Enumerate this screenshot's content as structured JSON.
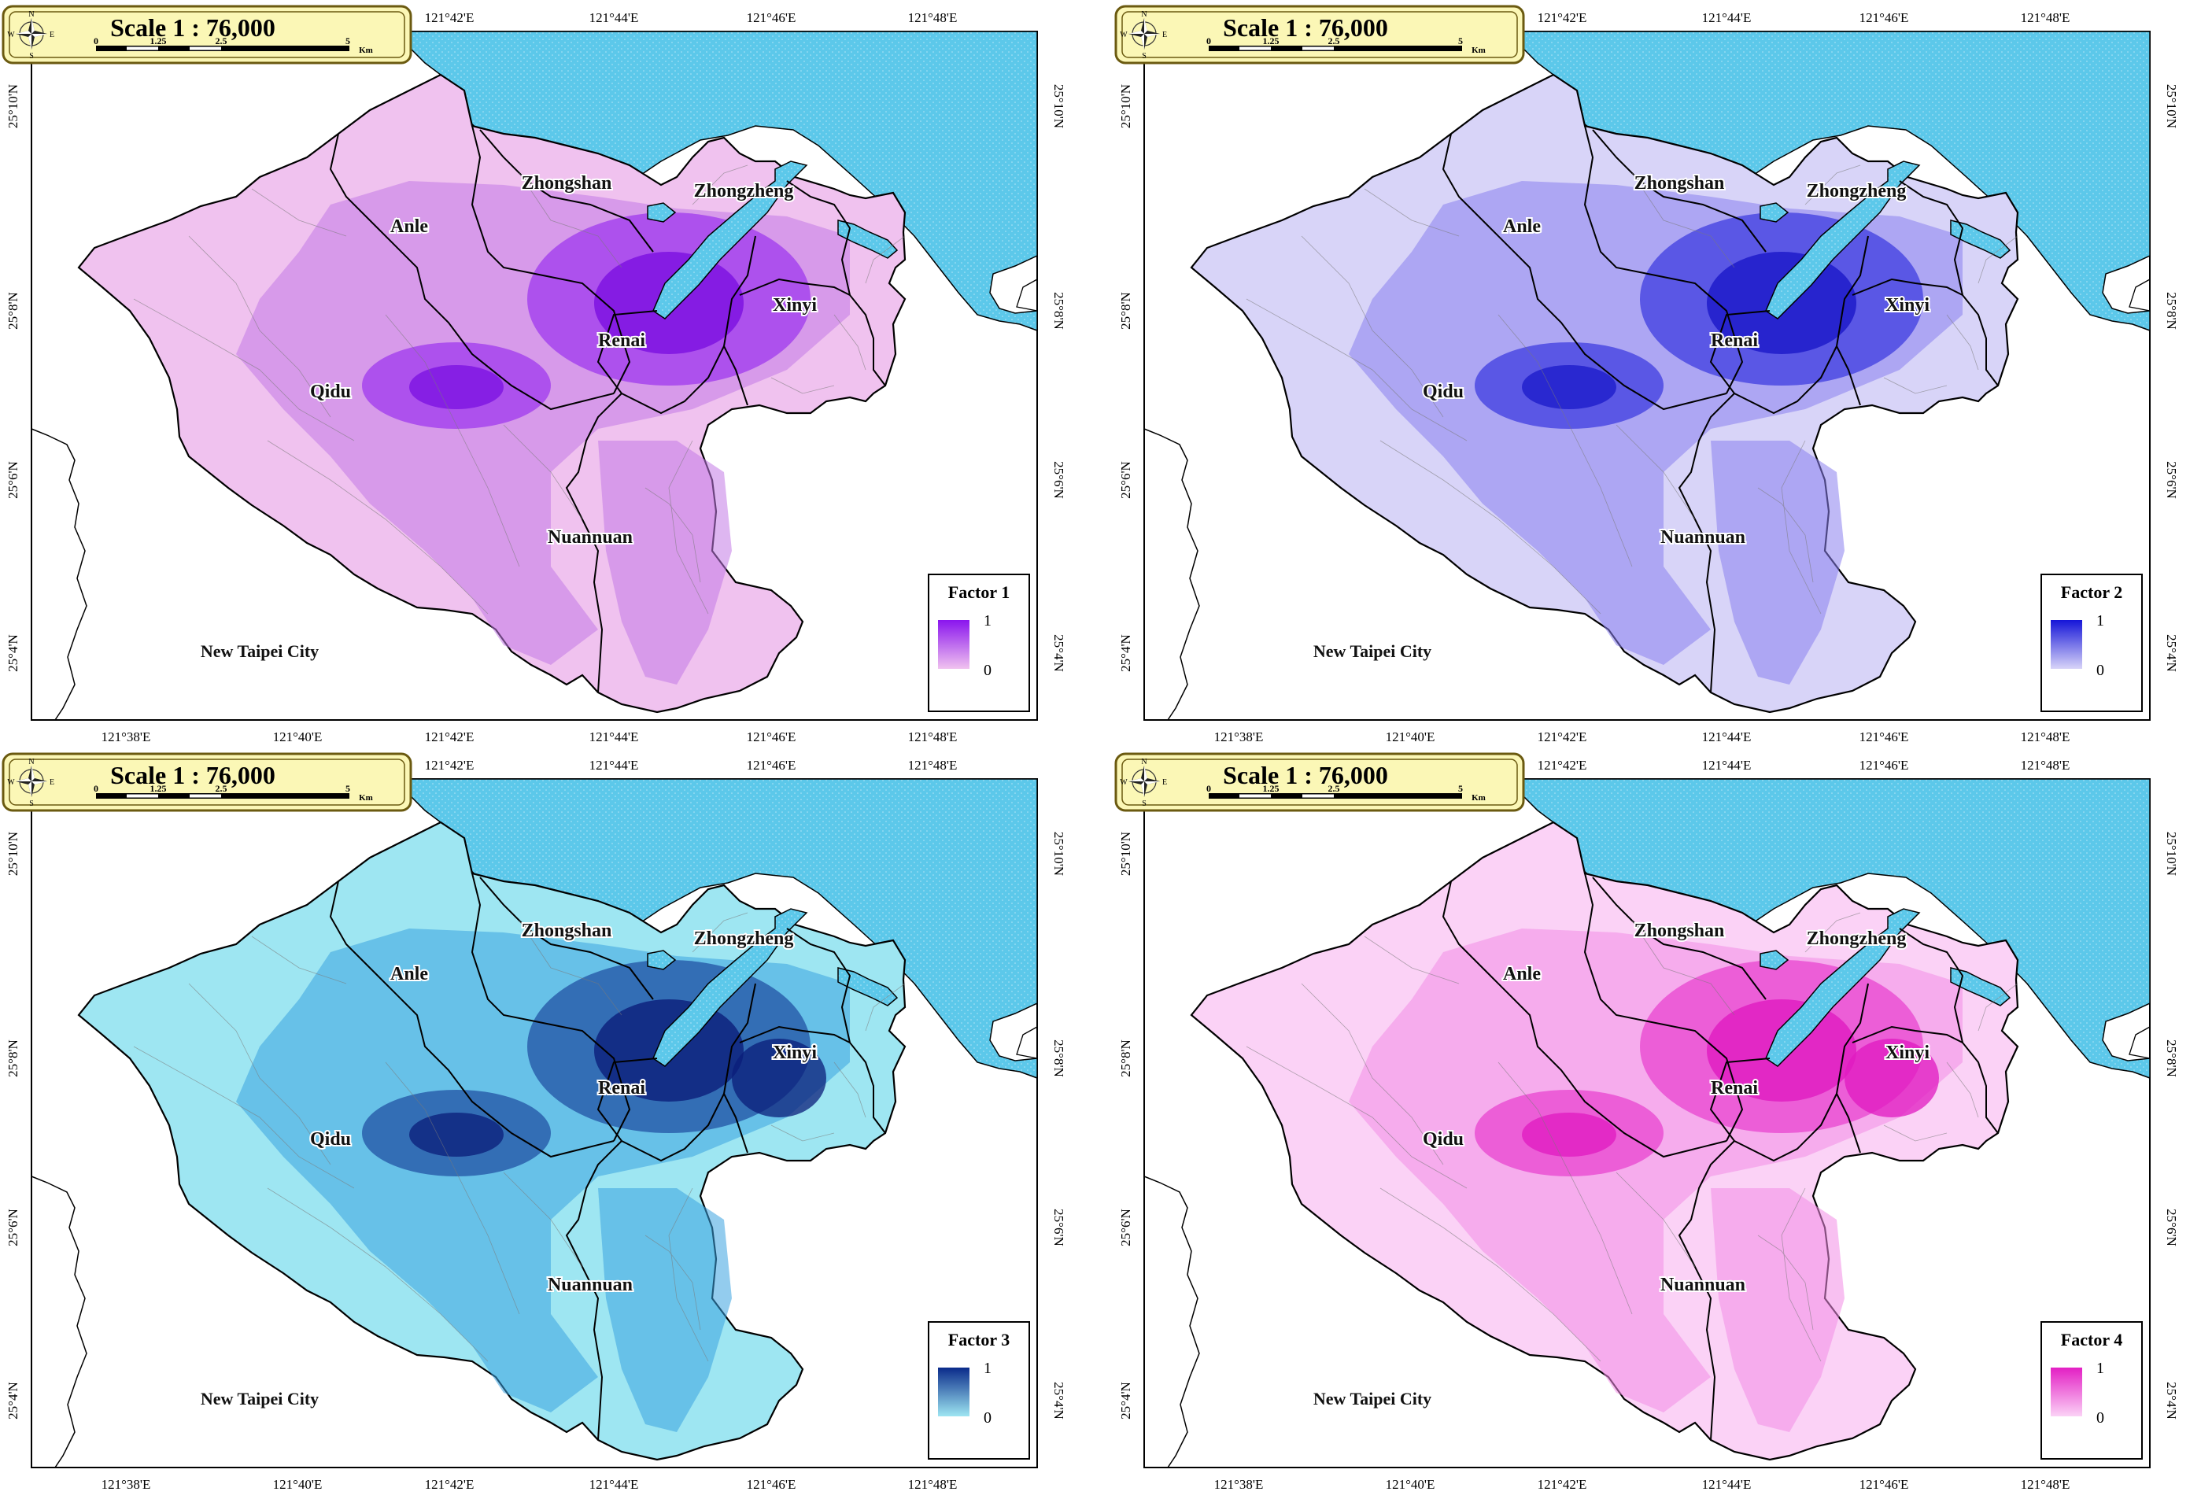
{
  "lon_labels": [
    "121°38'E",
    "121°40'E",
    "121°42'E",
    "121°44'E",
    "121°46'E",
    "121°48'E"
  ],
  "lat_labels": [
    "25°10'N",
    "25°8'N",
    "25°6'N",
    "25°4'N"
  ],
  "scale": {
    "title": "Scale 1 : 76,000",
    "ticks": [
      "0",
      "1.25",
      "2.5",
      "5"
    ],
    "unit": "Km"
  },
  "compass_letters": {
    "n": "N",
    "s": "S",
    "e": "E",
    "w": "W"
  },
  "district_labels": {
    "zhongshan": "Zhongshan",
    "zhongzheng": "Zhongzheng",
    "anle": "Anle",
    "xinyi": "Xinyi",
    "renai": "Renai",
    "qidu": "Qidu",
    "nuannuan": "Nuannuan"
  },
  "city_label": "New Taipei City",
  "colors": {
    "sea": "#5cc8ea",
    "land_outside": "#ffffff",
    "scale_box": "#fbf7b6",
    "scale_border": "#6b5a10"
  },
  "panels": [
    {
      "legend_title": "Factor 1",
      "legend_max": "1",
      "legend_min": "0",
      "color_high": "#8a15ee",
      "color_low": "#f0c2ef",
      "color_mid": "#c27ae6",
      "color_peak": "#7a0fe0"
    },
    {
      "legend_title": "Factor 2",
      "legend_max": "1",
      "legend_min": "0",
      "color_high": "#1515d8",
      "color_low": "#d8d4f8",
      "color_mid": "#8a80ee",
      "color_peak": "#1a18c8"
    },
    {
      "legend_title": "Factor 3",
      "legend_max": "1",
      "legend_min": "0",
      "color_high": "#0a2a8a",
      "color_low": "#9ee6f2",
      "color_mid": "#3aa3e0",
      "color_peak": "#0b1e7a"
    },
    {
      "legend_title": "Factor 4",
      "legend_max": "1",
      "legend_min": "0",
      "color_high": "#e31fc4",
      "color_low": "#fbd2f6",
      "color_mid": "#f38ce5",
      "color_peak": "#e01ac0"
    }
  ]
}
